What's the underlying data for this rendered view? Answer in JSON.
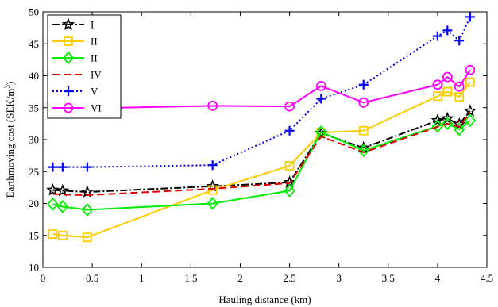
{
  "chart_data": {
    "type": "line",
    "title": "",
    "xlabel": "Hauling distance (km)",
    "ylabel_main": "Earthmoving cost (SEK/m",
    "ylabel_sup": "3",
    "ylabel_close": ")",
    "xlim": [
      0,
      4.5
    ],
    "ylim": [
      10,
      50
    ],
    "xticks": [
      "0",
      "0.5",
      "1",
      "1.5",
      "2",
      "2.5",
      "3",
      "3.5",
      "4",
      "4.5"
    ],
    "yticks": [
      "10",
      "15",
      "20",
      "25",
      "30",
      "35",
      "40",
      "45",
      "50"
    ],
    "grid": false,
    "legend_position": "top-left",
    "x": [
      0.1,
      0.2,
      0.45,
      1.72,
      2.5,
      2.82,
      3.25,
      4.0,
      4.1,
      4.22,
      4.33
    ],
    "series": [
      {
        "name": "I",
        "color": "#000000",
        "style": "dashdot",
        "marker": "star",
        "values": [
          22.1,
          22.0,
          21.8,
          22.7,
          23.3,
          31.0,
          28.7,
          33.0,
          33.3,
          32.4,
          34.5
        ]
      },
      {
        "name": "II",
        "color": "#ffcc00",
        "style": "solid",
        "marker": "square",
        "values": [
          15.2,
          15.0,
          14.7,
          22.1,
          25.9,
          31.1,
          31.4,
          36.8,
          37.5,
          36.7,
          39.0
        ]
      },
      {
        "name": "II",
        "color": "#00ee00",
        "style": "solid",
        "marker": "diamond",
        "values": [
          19.9,
          19.5,
          19.0,
          20.0,
          22.0,
          31.2,
          28.3,
          32.1,
          32.5,
          31.6,
          33.0
        ]
      },
      {
        "name": "IV",
        "color": "#dd0000",
        "style": "dashed",
        "marker": "none",
        "values": [
          21.5,
          21.4,
          21.3,
          22.3,
          23.2,
          30.5,
          28.0,
          32.0,
          32.5,
          32.0,
          34.3
        ]
      },
      {
        "name": "V",
        "color": "#0000ff",
        "style": "dotted",
        "marker": "plus",
        "values": [
          25.7,
          25.7,
          25.7,
          26.0,
          31.4,
          36.4,
          38.6,
          46.2,
          47.1,
          45.5,
          49.2
        ]
      },
      {
        "name": "VI",
        "color": "#ff00ff",
        "style": "solid",
        "marker": "circle",
        "values": [
          35.0,
          35.0,
          34.9,
          35.3,
          35.2,
          38.4,
          35.8,
          38.6,
          39.8,
          38.3,
          40.9
        ]
      }
    ]
  }
}
